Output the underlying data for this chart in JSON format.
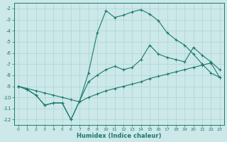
{
  "xlabel": "Humidex (Indice chaleur)",
  "bg_color": "#cce8e8",
  "line_color": "#1a7a6e",
  "grid_color": "#aad4d4",
  "xlim": [
    -0.5,
    23.5
  ],
  "ylim": [
    -12.5,
    -1.5
  ],
  "xticks": [
    0,
    1,
    2,
    3,
    4,
    5,
    6,
    7,
    8,
    9,
    10,
    11,
    12,
    13,
    14,
    15,
    16,
    17,
    18,
    19,
    20,
    21,
    22,
    23
  ],
  "yticks": [
    -2,
    -3,
    -4,
    -5,
    -6,
    -7,
    -8,
    -9,
    -10,
    -11,
    -12
  ],
  "series1_x": [
    0,
    1,
    2,
    3,
    4,
    5,
    6,
    7,
    8,
    9,
    10,
    11,
    12,
    13,
    14,
    15,
    16,
    17,
    18,
    19,
    20,
    21,
    22,
    23
  ],
  "series1_y": [
    -9.0,
    -9.3,
    -9.8,
    -10.7,
    -10.5,
    -10.5,
    -12.0,
    -10.3,
    -7.8,
    -4.2,
    -2.2,
    -2.8,
    -2.6,
    -2.3,
    -2.1,
    -2.5,
    -3.1,
    -4.2,
    -4.8,
    -5.3,
    -6.1,
    -7.0,
    -7.8,
    -8.2
  ],
  "series2_x": [
    0,
    1,
    2,
    3,
    4,
    5,
    6,
    7,
    8,
    9,
    10,
    11,
    12,
    13,
    14,
    15,
    16,
    17,
    18,
    19,
    20,
    21,
    22,
    23
  ],
  "series2_y": [
    -9.0,
    -9.3,
    -9.8,
    -10.7,
    -10.5,
    -10.5,
    -12.0,
    -10.3,
    -8.6,
    -8.0,
    -7.5,
    -7.2,
    -7.5,
    -7.3,
    -6.6,
    -5.3,
    -6.1,
    -6.4,
    -6.6,
    -6.8,
    -5.5,
    -6.2,
    -6.8,
    -7.5
  ],
  "series3_x": [
    0,
    1,
    2,
    3,
    4,
    5,
    6,
    7,
    8,
    9,
    10,
    11,
    12,
    13,
    14,
    15,
    16,
    17,
    18,
    19,
    20,
    21,
    22,
    23
  ],
  "series3_y": [
    -9.0,
    -9.2,
    -9.4,
    -9.6,
    -9.8,
    -10.0,
    -10.2,
    -10.4,
    -10.0,
    -9.7,
    -9.4,
    -9.2,
    -9.0,
    -8.8,
    -8.6,
    -8.3,
    -8.1,
    -7.9,
    -7.7,
    -7.5,
    -7.3,
    -7.1,
    -6.9,
    -8.2
  ]
}
